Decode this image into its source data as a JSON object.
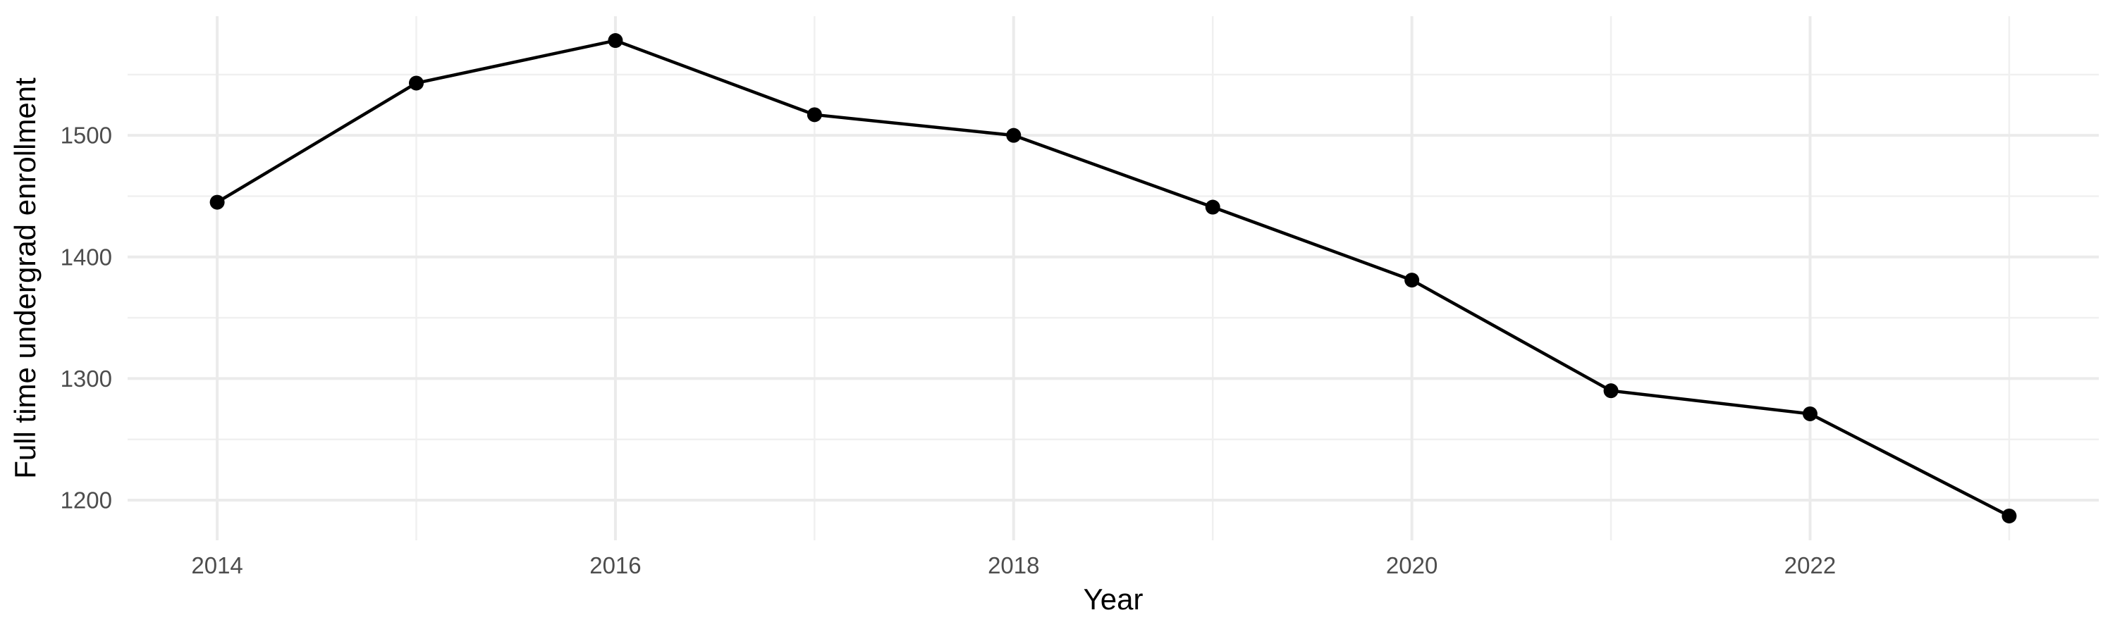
{
  "chart_data": {
    "type": "line",
    "title": "",
    "xlabel": "Year",
    "ylabel": "Full time undergrad enrollment",
    "x": [
      2014,
      2015,
      2016,
      2017,
      2018,
      2019,
      2020,
      2021,
      2022,
      2023
    ],
    "y": [
      1445,
      1543,
      1578,
      1517,
      1500,
      1441,
      1381,
      1290,
      1271,
      1187
    ],
    "x_ticks": [
      2014,
      2016,
      2018,
      2020,
      2022
    ],
    "y_ticks": [
      1200,
      1300,
      1400,
      1500
    ],
    "x_minor_gridlines": [
      2015,
      2017,
      2019,
      2021,
      2023
    ],
    "y_minor_gridlines": [
      1250,
      1350,
      1450,
      1550
    ],
    "xlim": [
      2013.55,
      2023.45
    ],
    "ylim": [
      1167,
      1598
    ],
    "grid": true,
    "legend_position": "none",
    "colors": {
      "line": "#000000",
      "point": "#000000",
      "grid_major": "#EBEBEB",
      "grid_minor": "#F0F0F0",
      "tick_label": "#4D4D4D",
      "axis_title": "#000000",
      "background": "#FFFFFF"
    }
  }
}
